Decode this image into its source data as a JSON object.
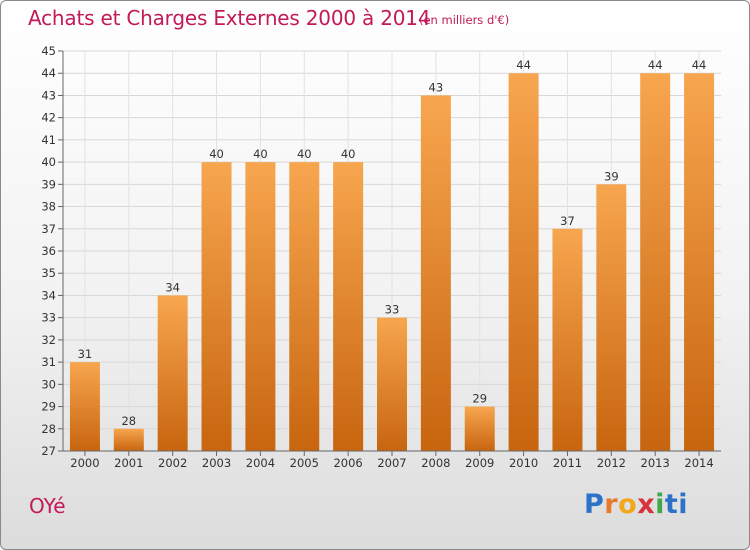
{
  "title": "Achats et Charges Externes 2000 à 2014",
  "subtitle": "(en milliers d'€)",
  "commune": "OYé",
  "logo": [
    "P",
    "r",
    "o",
    "x",
    "i",
    "t",
    "i"
  ],
  "colors": {
    "bar_light": "#f7a64f",
    "bar_dark": "#c8650f",
    "title": "#c21a57"
  },
  "chart_data": {
    "type": "bar",
    "categories": [
      "2000",
      "2001",
      "2002",
      "2003",
      "2004",
      "2005",
      "2006",
      "2007",
      "2008",
      "2009",
      "2010",
      "2011",
      "2012",
      "2013",
      "2014"
    ],
    "values": [
      31,
      28,
      34,
      40,
      40,
      40,
      40,
      33,
      43,
      29,
      44,
      37,
      39,
      44,
      44
    ],
    "ylim": [
      27,
      45
    ],
    "yticks": [
      27,
      28,
      29,
      30,
      31,
      32,
      33,
      34,
      35,
      36,
      37,
      38,
      39,
      40,
      41,
      42,
      43,
      44,
      45
    ],
    "grid": true
  }
}
